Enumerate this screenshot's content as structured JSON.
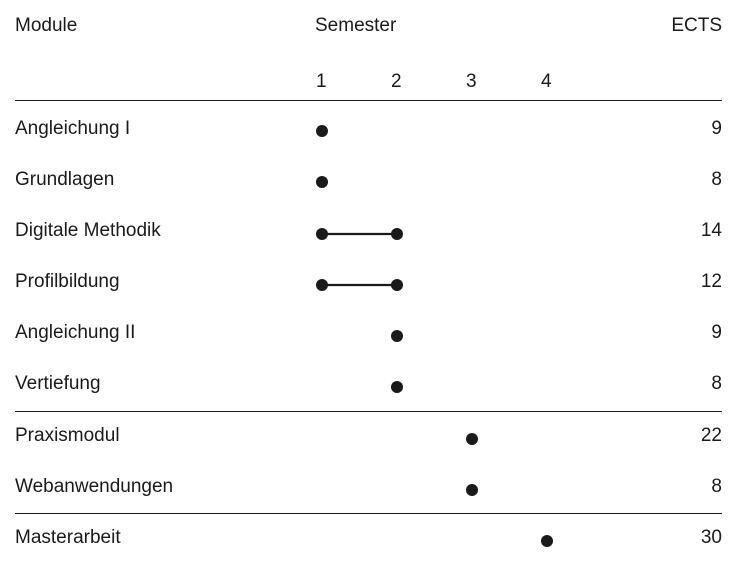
{
  "header": {
    "module_label": "Module",
    "semester_label": "Semester",
    "ects_label": "ECTS",
    "semester_numbers": [
      "1",
      "2",
      "3",
      "4"
    ]
  },
  "rows": [
    {
      "name": "Angleichung I",
      "start": 1,
      "end": 1,
      "ects": "9"
    },
    {
      "name": "Grundlagen",
      "start": 1,
      "end": 1,
      "ects": "8"
    },
    {
      "name": "Digitale Methodik",
      "start": 1,
      "end": 2,
      "ects": "14"
    },
    {
      "name": "Profilbildung",
      "start": 1,
      "end": 2,
      "ects": "12"
    },
    {
      "name": "Angleichung II",
      "start": 2,
      "end": 2,
      "ects": "9"
    },
    {
      "name": "Vertiefung",
      "start": 2,
      "end": 2,
      "ects": "8"
    },
    {
      "name": "Praxismodul",
      "start": 3,
      "end": 3,
      "ects": "22"
    },
    {
      "name": "Webanwendungen",
      "start": 3,
      "end": 3,
      "ects": "8"
    },
    {
      "name": "Masterarbeit",
      "start": 4,
      "end": 4,
      "ects": "30"
    }
  ],
  "colors": {
    "ink": "#1a1a1a",
    "background": "#ffffff"
  }
}
